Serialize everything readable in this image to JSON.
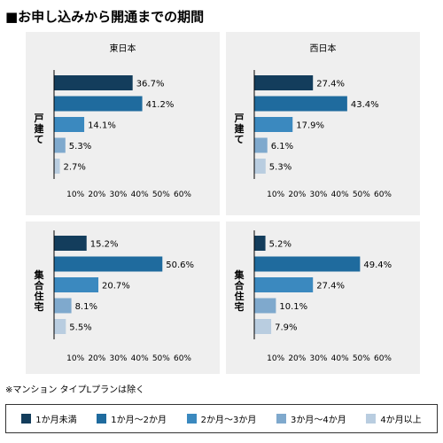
{
  "title": "■お申し込みから開通までの期間",
  "footnote": "※マンション タイプLプランは除く",
  "colors": [
    "#133d5c",
    "#1f6b9e",
    "#3b89bf",
    "#7fa9cd",
    "#b9cde0"
  ],
  "legend": [
    "1か月未満",
    "1か月〜2か月",
    "2か月〜3か月",
    "3か月〜4か月",
    "4か月以上"
  ],
  "chart_data": [
    {
      "type": "bar",
      "title": "東日本",
      "ylabel": "戸建て",
      "categories": [
        "1か月未満",
        "1か月〜2か月",
        "2か月〜3か月",
        "3か月〜4か月",
        "4か月以上"
      ],
      "values": [
        36.7,
        41.2,
        14.1,
        5.3,
        2.7
      ],
      "value_labels": [
        "36.7%",
        "41.2%",
        "14.1%",
        "5.3%",
        "2.7%"
      ],
      "xlim": [
        0,
        60
      ],
      "xticks": [
        "10%",
        "20%",
        "30%",
        "40%",
        "50%",
        "60%"
      ],
      "grid": false,
      "legend_position": "bottom"
    },
    {
      "type": "bar",
      "title": "西日本",
      "ylabel": "戸建て",
      "categories": [
        "1か月未満",
        "1か月〜2か月",
        "2か月〜3か月",
        "3か月〜4か月",
        "4か月以上"
      ],
      "values": [
        27.4,
        43.4,
        17.9,
        6.1,
        5.3
      ],
      "value_labels": [
        "27.4%",
        "43.4%",
        "17.9%",
        "6.1%",
        "5.3%"
      ],
      "xlim": [
        0,
        60
      ],
      "xticks": [
        "10%",
        "20%",
        "30%",
        "40%",
        "50%",
        "60%"
      ],
      "grid": false,
      "legend_position": "bottom"
    },
    {
      "type": "bar",
      "title": "",
      "ylabel": "集合住宅",
      "categories": [
        "1か月未満",
        "1か月〜2か月",
        "2か月〜3か月",
        "3か月〜4か月",
        "4か月以上"
      ],
      "values": [
        15.2,
        50.6,
        20.7,
        8.1,
        5.5
      ],
      "value_labels": [
        "15.2%",
        "50.6%",
        "20.7%",
        "8.1%",
        "5.5%"
      ],
      "xlim": [
        0,
        60
      ],
      "xticks": [
        "10%",
        "20%",
        "30%",
        "40%",
        "50%",
        "60%"
      ],
      "grid": false,
      "legend_position": "bottom"
    },
    {
      "type": "bar",
      "title": "",
      "ylabel": "集合住宅",
      "categories": [
        "1か月未満",
        "1か月〜2か月",
        "2か月〜3か月",
        "3か月〜4か月",
        "4か月以上"
      ],
      "values": [
        5.2,
        49.4,
        27.4,
        10.1,
        7.9
      ],
      "value_labels": [
        "5.2%",
        "49.4%",
        "27.4%",
        "10.1%",
        "7.9%"
      ],
      "xlim": [
        0,
        60
      ],
      "xticks": [
        "10%",
        "20%",
        "30%",
        "40%",
        "50%",
        "60%"
      ],
      "grid": false,
      "legend_position": "bottom"
    }
  ]
}
